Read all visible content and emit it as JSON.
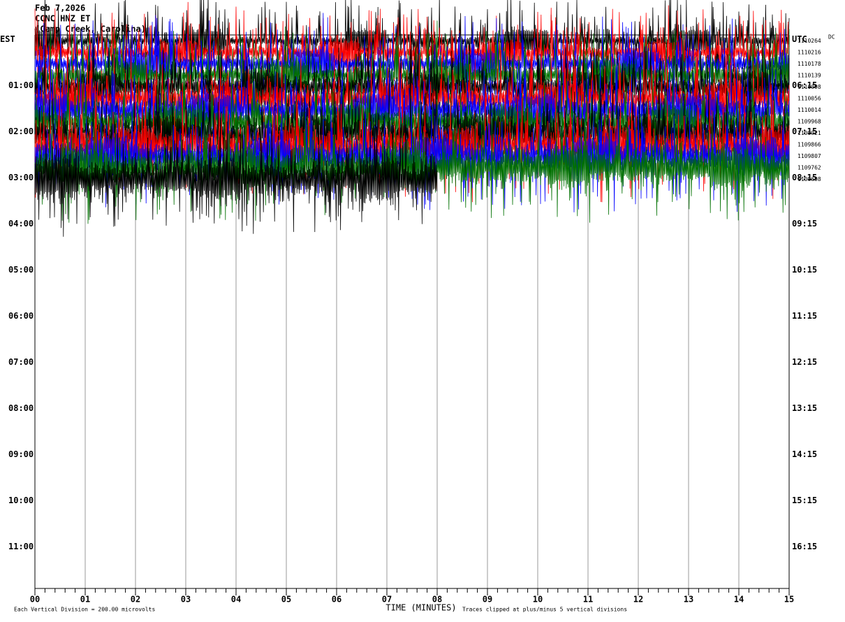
{
  "chart_data": {
    "type": "helicorder",
    "title_lines": [
      "Feb 7,2026",
      "CCNC HNZ ET",
      "(Camp Creek, Carolina)"
    ],
    "dc_heading": "DC",
    "x_label": "TIME (MINUTES)",
    "scale_note": "Each Vertical Division =  200.00 microvolts",
    "clip_note": "Traces clipped at plus/minus 5 vertical divisions",
    "xlim": [
      0,
      15
    ],
    "xticks": [
      {
        "value": 0,
        "label": "00"
      },
      {
        "value": 1,
        "label": "01"
      },
      {
        "value": 2,
        "label": "02"
      },
      {
        "value": 3,
        "label": "03"
      },
      {
        "value": 4,
        "label": "04"
      },
      {
        "value": 5,
        "label": "05"
      },
      {
        "value": 6,
        "label": "06"
      },
      {
        "value": 7,
        "label": "07"
      },
      {
        "value": 8,
        "label": "08"
      },
      {
        "value": 9,
        "label": "09"
      },
      {
        "value": 10,
        "label": "10"
      },
      {
        "value": 11,
        "label": "11"
      },
      {
        "value": 12,
        "label": "12"
      },
      {
        "value": 13,
        "label": "13"
      },
      {
        "value": 14,
        "label": "14"
      },
      {
        "value": 15,
        "label": "15"
      }
    ],
    "ylim": [
      0,
      12
    ],
    "yticks": [
      {
        "value": 0,
        "label": "EST"
      },
      {
        "value": 1,
        "label": "01:00"
      },
      {
        "value": 2,
        "label": "02:00"
      },
      {
        "value": 3,
        "label": "03:00"
      },
      {
        "value": 4,
        "label": "04:00"
      },
      {
        "value": 5,
        "label": "05:00"
      },
      {
        "value": 6,
        "label": "06:00"
      },
      {
        "value": 7,
        "label": "07:00"
      },
      {
        "value": 8,
        "label": "08:00"
      },
      {
        "value": 9,
        "label": "09:00"
      },
      {
        "value": 10,
        "label": "10:00"
      },
      {
        "value": 11,
        "label": "11:00"
      }
    ],
    "y2ticks": [
      {
        "value": 0,
        "label": "UTC"
      },
      {
        "value": 1,
        "label": "06:15"
      },
      {
        "value": 2,
        "label": "07:15"
      },
      {
        "value": 3,
        "label": "08:15"
      },
      {
        "value": 4,
        "label": "09:15"
      },
      {
        "value": 5,
        "label": "10:15"
      },
      {
        "value": 6,
        "label": "11:15"
      },
      {
        "value": 7,
        "label": "12:15"
      },
      {
        "value": 8,
        "label": "13:15"
      },
      {
        "value": 9,
        "label": "14:15"
      },
      {
        "value": 10,
        "label": "15:15"
      },
      {
        "value": 11,
        "label": "16:15"
      }
    ],
    "grid": true,
    "traces": [
      {
        "color": "#000000",
        "dc": 1110264,
        "end": 15
      },
      {
        "color": "#ff0000",
        "dc": 1110216,
        "end": 15
      },
      {
        "color": "#0000ff",
        "dc": 1110178,
        "end": 15
      },
      {
        "color": "#007000",
        "dc": 1110139,
        "end": 15
      },
      {
        "color": "#000000",
        "dc": 1110098,
        "end": 15
      },
      {
        "color": "#ff0000",
        "dc": 1110056,
        "end": 15
      },
      {
        "color": "#0000ff",
        "dc": 1110014,
        "end": 15
      },
      {
        "color": "#007000",
        "dc": 1109968,
        "end": 15
      },
      {
        "color": "#000000",
        "dc": 1109921,
        "end": 15
      },
      {
        "color": "#ff0000",
        "dc": 1109866,
        "end": 15
      },
      {
        "color": "#0000ff",
        "dc": 1109807,
        "end": 15
      },
      {
        "color": "#007000",
        "dc": 1109762,
        "end": 15
      },
      {
        "color": "#000000",
        "dc": 1109698,
        "end": 8
      }
    ]
  }
}
